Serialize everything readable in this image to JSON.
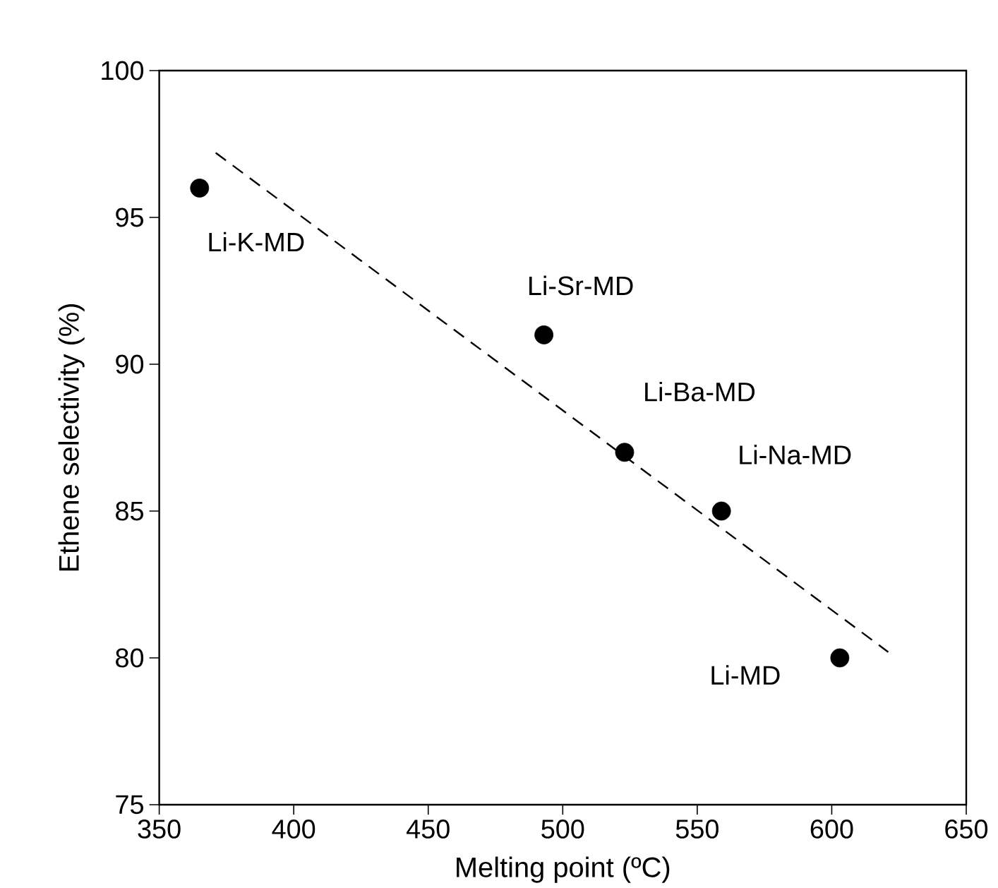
{
  "chart_data": {
    "type": "scatter",
    "xlabel": "Melting point (ºC)",
    "ylabel": "Ethene selectivity (%)",
    "xlim": [
      350,
      650
    ],
    "ylim": [
      75,
      100
    ],
    "xticks": [
      350,
      400,
      450,
      500,
      550,
      600,
      650
    ],
    "yticks": [
      75,
      80,
      85,
      90,
      95,
      100
    ],
    "grid": false,
    "legend": false,
    "series": [
      {
        "color": "#000000",
        "marker": "circle",
        "x": [
          365,
          493,
          523,
          559,
          603
        ],
        "values": [
          96,
          91,
          87,
          85,
          80
        ]
      },
      {
        "type": "line",
        "color": "#000000",
        "line_style": "dashed",
        "marker": "none",
        "x": [
          371,
          621
        ],
        "values": [
          97.2,
          80.2
        ]
      }
    ],
    "annotations": [
      {
        "text": "Li-K-MD",
        "x": 365,
        "y": 96
      },
      {
        "text": "Li-Sr-MD",
        "x": 493,
        "y": 91
      },
      {
        "text": "Li-Ba-MD",
        "x": 523,
        "y": 87
      },
      {
        "text": "Li-Na-MD",
        "x": 559,
        "y": 85
      },
      {
        "text": "Li-MD",
        "x": 603,
        "y": 80
      }
    ]
  }
}
